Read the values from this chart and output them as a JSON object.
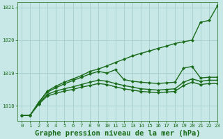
{
  "background_color": "#c8e8e8",
  "grid_color": "#a0c8c8",
  "line_color": "#1a6b1a",
  "title": "Graphe pression niveau de la mer (hPa)",
  "xlim": [
    -0.5,
    23
  ],
  "ylim": [
    1017.55,
    1021.15
  ],
  "yticks": [
    1018,
    1019,
    1020,
    1021
  ],
  "xticks": [
    0,
    1,
    2,
    3,
    4,
    5,
    6,
    7,
    8,
    9,
    10,
    11,
    12,
    13,
    14,
    15,
    16,
    17,
    18,
    19,
    20,
    21,
    22,
    23
  ],
  "series": [
    {
      "x": [
        0,
        1,
        2,
        3,
        4,
        5,
        6,
        7,
        8,
        9,
        10,
        11,
        12,
        13,
        14,
        15,
        16,
        17,
        18,
        19,
        20,
        21,
        22,
        23
      ],
      "y": [
        1017.7,
        1017.72,
        1018.1,
        1018.45,
        1018.6,
        1018.72,
        1018.82,
        1018.92,
        1019.05,
        1019.12,
        1019.22,
        1019.32,
        1019.42,
        1019.52,
        1019.6,
        1019.67,
        1019.75,
        1019.82,
        1019.9,
        1019.95,
        1020.0,
        1020.55,
        1020.6,
        1021.05
      ]
    },
    {
      "x": [
        0,
        1,
        2,
        3,
        4,
        5,
        6,
        7,
        8,
        9,
        10,
        11,
        12,
        13,
        14,
        15,
        16,
        17,
        18,
        19,
        20,
        21,
        22,
        23
      ],
      "y": [
        1017.7,
        1017.72,
        1018.12,
        1018.42,
        1018.55,
        1018.67,
        1018.77,
        1018.87,
        1018.97,
        1019.05,
        1019.0,
        1019.1,
        1018.8,
        1018.75,
        1018.72,
        1018.7,
        1018.68,
        1018.7,
        1018.72,
        1019.15,
        1019.2,
        1018.85,
        1018.87,
        1018.87
      ]
    },
    {
      "x": [
        0,
        1,
        2,
        3,
        4,
        5,
        6,
        7,
        8,
        9,
        10,
        11,
        12,
        13,
        14,
        15,
        16,
        17,
        18,
        19,
        20,
        21,
        22,
        23
      ],
      "y": [
        1017.7,
        1017.72,
        1018.08,
        1018.35,
        1018.45,
        1018.52,
        1018.58,
        1018.65,
        1018.72,
        1018.78,
        1018.75,
        1018.68,
        1018.62,
        1018.57,
        1018.52,
        1018.5,
        1018.48,
        1018.5,
        1018.52,
        1018.72,
        1018.82,
        1018.75,
        1018.78,
        1018.78
      ]
    },
    {
      "x": [
        0,
        1,
        2,
        3,
        4,
        5,
        6,
        7,
        8,
        9,
        10,
        11,
        12,
        13,
        14,
        15,
        16,
        17,
        18,
        19,
        20,
        21,
        22,
        23
      ],
      "y": [
        1017.7,
        1017.72,
        1018.05,
        1018.3,
        1018.38,
        1018.45,
        1018.5,
        1018.57,
        1018.62,
        1018.68,
        1018.65,
        1018.58,
        1018.52,
        1018.48,
        1018.44,
        1018.42,
        1018.4,
        1018.42,
        1018.44,
        1018.62,
        1018.72,
        1018.65,
        1018.68,
        1018.68
      ]
    }
  ],
  "marker": "D",
  "markersize": 2.2,
  "lw": 1.0,
  "title_fontsize": 7.5,
  "tick_fontsize": 5.2,
  "title_fontweight": "bold"
}
